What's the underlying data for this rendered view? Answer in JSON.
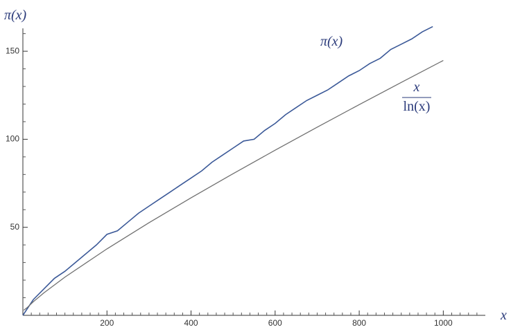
{
  "chart_data": {
    "type": "line",
    "xlabel": "x",
    "ylabel": "π(x)",
    "xlim": [
      0,
      1100
    ],
    "ylim": [
      0,
      163
    ],
    "xticks": [
      200,
      400,
      600,
      800,
      1000
    ],
    "yticks": [
      50,
      100,
      150
    ],
    "xminorticks": [
      20,
      40,
      60,
      80,
      100,
      120,
      140,
      160,
      180,
      220,
      240,
      260,
      280,
      300,
      320,
      340,
      360,
      380,
      420,
      440,
      460,
      480,
      500,
      520,
      540,
      560,
      580,
      620,
      640,
      660,
      680,
      700,
      720,
      740,
      760,
      780,
      820,
      840,
      860,
      880,
      900,
      920,
      940,
      960,
      980,
      1020,
      1040,
      1060,
      1080
    ],
    "yminorticks": [
      10,
      20,
      30,
      40,
      60,
      70,
      80,
      90,
      110,
      120,
      130,
      140,
      160
    ],
    "series": [
      {
        "name": "π(x)",
        "color": "#3b5998",
        "x": [
          0,
          25,
          50,
          75,
          100,
          125,
          150,
          175,
          200,
          225,
          250,
          275,
          300,
          325,
          350,
          375,
          400,
          425,
          450,
          475,
          500,
          525,
          550,
          575,
          600,
          625,
          650,
          675,
          700,
          725,
          750,
          775,
          800,
          825,
          850,
          875,
          900,
          925,
          950,
          975
        ],
        "values": [
          0,
          9,
          15,
          21,
          25,
          30,
          35,
          40,
          46,
          48,
          53,
          58,
          62,
          66,
          70,
          74,
          78,
          82,
          87,
          91,
          95,
          99,
          100,
          105,
          109,
          114,
          118,
          122,
          125,
          128,
          132,
          136,
          139,
          143,
          146,
          151,
          154,
          157,
          161,
          164
        ]
      },
      {
        "label": {
          "numerator": "x",
          "denominator": "ln(x)"
        },
        "color": "#707070",
        "x": [
          2,
          10,
          25,
          50,
          100,
          200,
          300,
          400,
          500,
          600,
          700,
          800,
          900,
          1000
        ],
        "values": [
          2.885,
          4.343,
          7.767,
          12.78,
          21.71,
          37.75,
          52.6,
          66.76,
          80.46,
          93.79,
          106.86,
          119.68,
          132.28,
          144.76
        ]
      }
    ]
  }
}
